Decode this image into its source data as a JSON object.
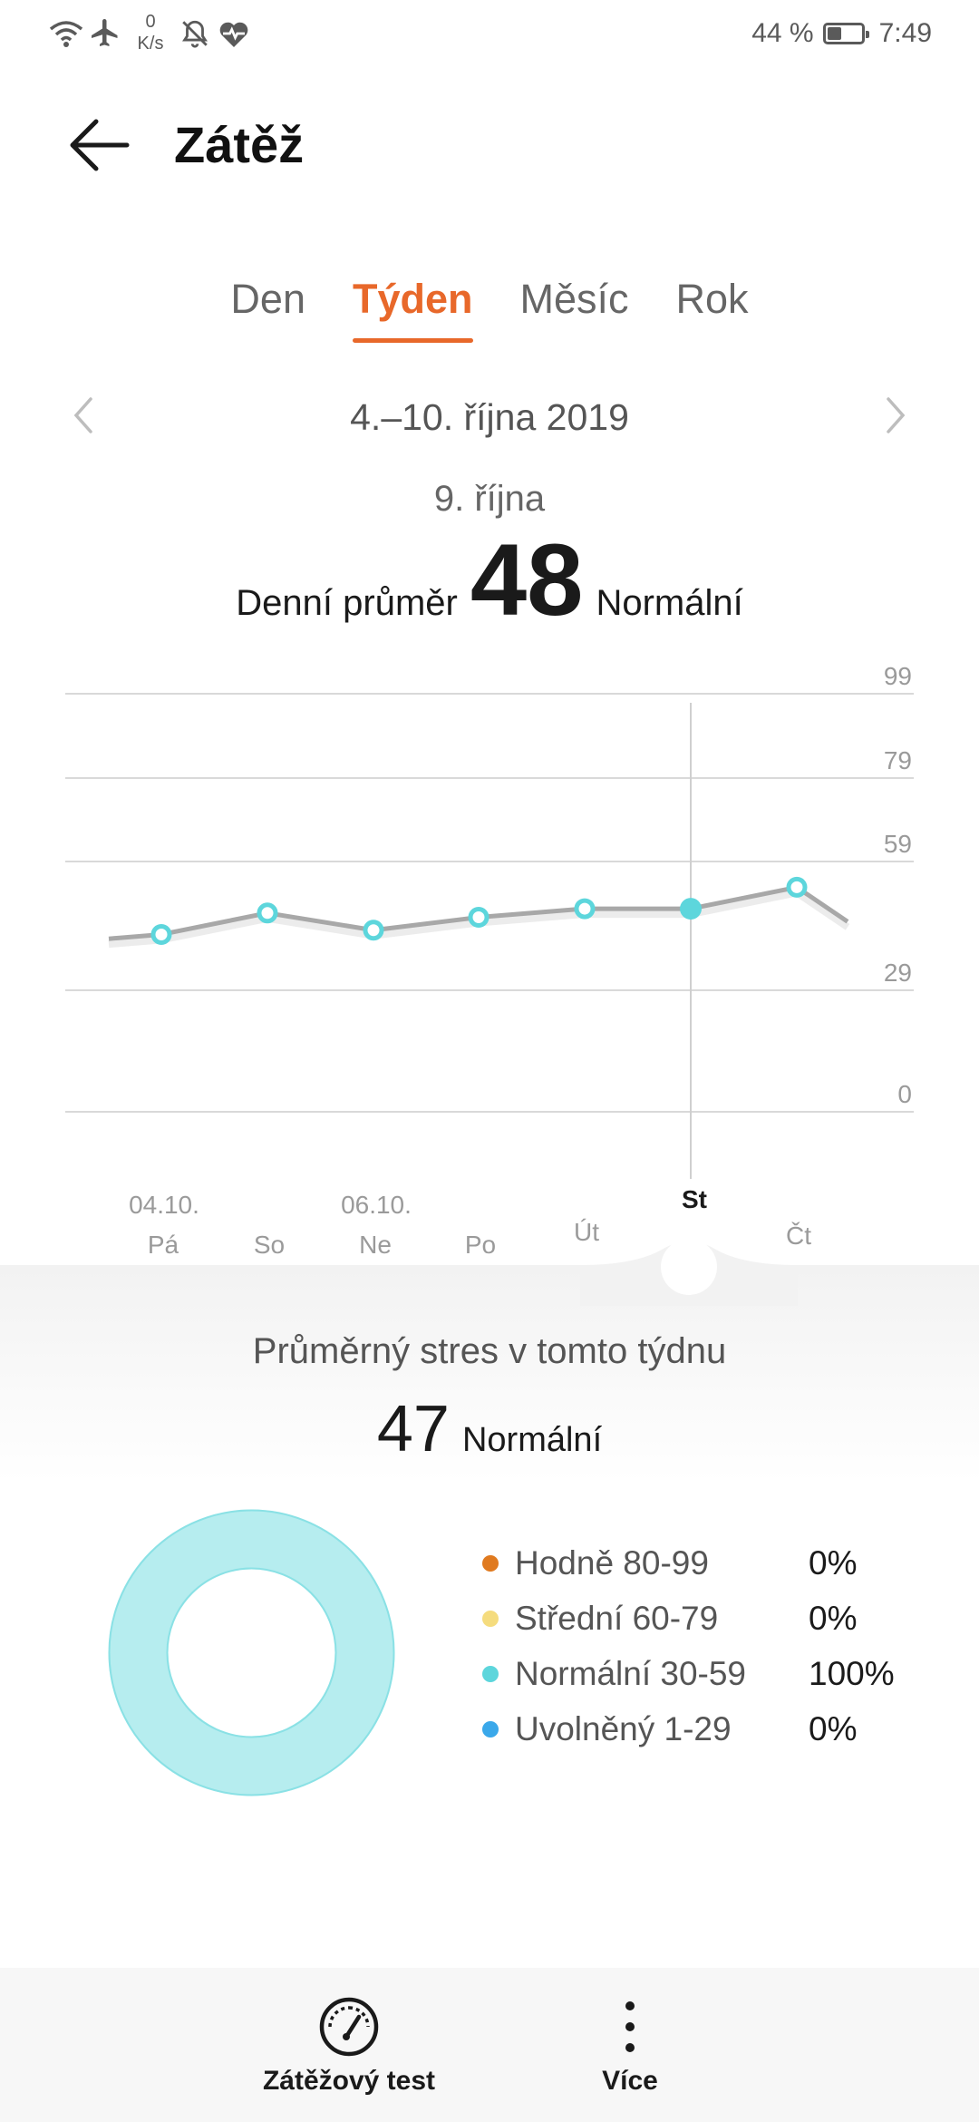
{
  "status_bar": {
    "speed_value": "0",
    "speed_unit": "K/s",
    "battery_percent": "44 %",
    "battery_level": 0.44,
    "time": "7:49",
    "icons": [
      "wifi-icon",
      "airplane-icon",
      "bell-off-icon",
      "heart-rate-icon"
    ]
  },
  "header": {
    "title": "Zátěž",
    "back_icon": "arrow-left-icon"
  },
  "tabs": [
    {
      "label": "Den",
      "active": false
    },
    {
      "label": "Týden",
      "active": true
    },
    {
      "label": "Měsíc",
      "active": false
    },
    {
      "label": "Rok",
      "active": false
    }
  ],
  "period": {
    "label": "4.–10. října 2019",
    "prev_icon": "chevron-left-icon",
    "next_icon": "chevron-right-icon"
  },
  "selected_day": {
    "date": "9. října",
    "avg_label": "Denní průměr",
    "avg_value": "48",
    "status": "Normální"
  },
  "chart_data": {
    "type": "line",
    "y_ticks": [
      99,
      79,
      59,
      29,
      0
    ],
    "categories": [
      {
        "date": "",
        "day": ""
      },
      {
        "date": "04.10.",
        "day": "Pá"
      },
      {
        "date": "",
        "day": "So"
      },
      {
        "date": "06.10.",
        "day": "Ne"
      },
      {
        "date": "",
        "day": "Po"
      },
      {
        "date": "",
        "day": "Út"
      },
      {
        "date": "",
        "day": "St"
      },
      {
        "date": "",
        "day": "Čt"
      },
      {
        "date": "",
        "day": ""
      }
    ],
    "values": [
      41,
      42,
      47,
      43,
      46,
      48,
      48,
      53,
      45
    ],
    "marker_indices": [
      1,
      2,
      3,
      4,
      5,
      6,
      7
    ],
    "selected_index": 6,
    "colors": {
      "line": "#a8a8a8",
      "marker": "#5dd6dc",
      "grid": "#d9d9d9"
    }
  },
  "week_summary": {
    "title": "Průměrný stres v tomto týdnu",
    "value": "47",
    "status": "Normální"
  },
  "distribution": [
    {
      "label": "Hodně 80-99",
      "percent": "0%",
      "value": 0,
      "color": "#e07a1f"
    },
    {
      "label": "Střední 60-79",
      "percent": "0%",
      "value": 0,
      "color": "#f5dc7e"
    },
    {
      "label": "Normální 30-59",
      "percent": "100%",
      "value": 100,
      "color": "#5dd6dc"
    },
    {
      "label": "Uvolněný 1-29",
      "percent": "0%",
      "value": 0,
      "color": "#3aa8ea"
    }
  ],
  "toolbar": {
    "stress_test_label": "Zátěžový test",
    "more_label": "Více",
    "stress_test_icon": "gauge-icon",
    "more_icon": "more-vertical-icon"
  }
}
